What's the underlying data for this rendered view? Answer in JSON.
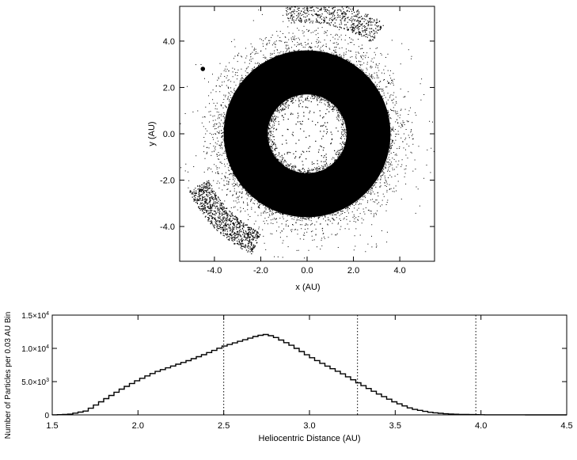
{
  "chart_data": [
    {
      "type": "scatter",
      "title": "",
      "xlabel": "x (AU)",
      "ylabel": "y (AU)",
      "xlim": [
        -5.5,
        5.5
      ],
      "ylim": [
        -5.5,
        5.5
      ],
      "x_ticks": [
        -4.0,
        -2.0,
        0.0,
        2.0,
        4.0
      ],
      "y_ticks": [
        -4.0,
        -2.0,
        0.0,
        2.0,
        4.0
      ],
      "x_tick_labels": [
        "-4.0",
        "-2.0",
        "0.0",
        "2.0",
        "4.0"
      ],
      "y_tick_labels": [
        "-4.0",
        "-2.0",
        "0.0",
        "2.0",
        "4.0"
      ],
      "grid": false,
      "features": {
        "main_belt_ring": {
          "center": [
            0.0,
            0.0
          ],
          "inner_radius": 1.7,
          "outer_radius": 3.6
        },
        "inner_sparse_particles": {
          "center": [
            0.0,
            0.0
          ],
          "max_radius": 1.7
        },
        "planet_marker": {
          "x": -4.5,
          "y": 2.8
        },
        "outer_arc_lower_left": {
          "center": [
            0.0,
            0.0
          ],
          "radius_range": [
            4.7,
            5.7
          ],
          "angle_range_deg": [
            205,
            245
          ]
        },
        "outer_arc_top": {
          "center": [
            0.0,
            0.0
          ],
          "radius_range": [
            4.8,
            5.8
          ],
          "angle_range_deg": [
            55,
            100
          ]
        }
      }
    },
    {
      "type": "line",
      "step": true,
      "title": "",
      "xlabel": "Heliocentric Distance (AU)",
      "ylabel": "Number of Particles per 0.03 AU Bin",
      "xlim": [
        1.5,
        4.5
      ],
      "ylim": [
        0,
        15000
      ],
      "x_ticks": [
        1.5,
        2.0,
        2.5,
        3.0,
        3.5,
        4.0,
        4.5
      ],
      "x_tick_labels": [
        "1.5",
        "2.0",
        "2.5",
        "3.0",
        "3.5",
        "4.0",
        "4.5"
      ],
      "y_ticks": [
        {
          "value": 0,
          "mantissa": "0",
          "exp": ""
        },
        {
          "value": 5000,
          "mantissa": "5.0×10",
          "exp": "3"
        },
        {
          "value": 10000,
          "mantissa": "1.0×10",
          "exp": "4"
        },
        {
          "value": 15000,
          "mantissa": "1.5×10",
          "exp": "4"
        }
      ],
      "vertical_dotted_lines": [
        2.5,
        3.28,
        3.97
      ],
      "grid": false,
      "bin_width": 0.03,
      "x": [
        1.5,
        1.6,
        1.7,
        1.8,
        1.9,
        2.0,
        2.1,
        2.2,
        2.3,
        2.4,
        2.5,
        2.6,
        2.7,
        2.75,
        2.8,
        2.9,
        3.0,
        3.1,
        3.2,
        3.3,
        3.4,
        3.5,
        3.6,
        3.7,
        3.8,
        3.9,
        4.0,
        4.1,
        4.5
      ],
      "y": [
        0,
        80,
        600,
        2200,
        3800,
        5200,
        6400,
        7300,
        8200,
        9200,
        10300,
        11100,
        11900,
        12100,
        11700,
        10400,
        8800,
        7400,
        6100,
        4600,
        3200,
        1900,
        900,
        400,
        150,
        60,
        20,
        10,
        0
      ]
    }
  ]
}
